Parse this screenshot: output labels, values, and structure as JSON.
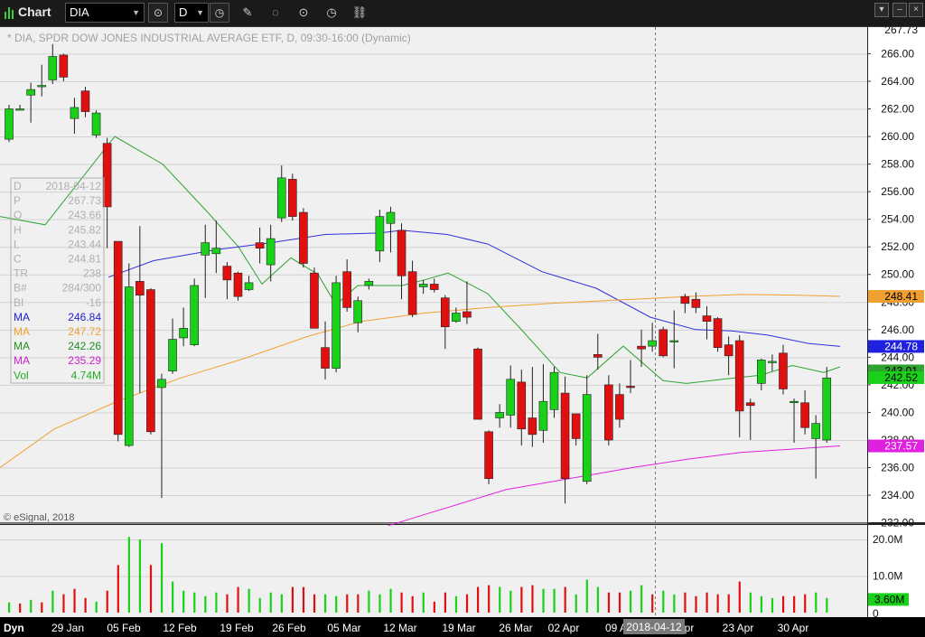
{
  "app": {
    "title": "Chart"
  },
  "toolbar": {
    "symbol": "DIA",
    "interval": "D"
  },
  "chart": {
    "header": "* DIA, SPDR DOW JONES INDUSTRIAL AVERAGE ETF, D, 09:30-16:00 (Dynamic)",
    "copyright": "© eSignal, 2018",
    "price_axis": [
      "266.00",
      "264.00",
      "262.00",
      "260.00",
      "258.00",
      "256.00",
      "254.00",
      "252.00",
      "250.00",
      "248.00",
      "246.00",
      "244.00",
      "242.00",
      "240.00",
      "238.00",
      "236.00",
      "234.00",
      "232.00"
    ],
    "volume_axis": [
      "20.0M",
      "10.0M",
      "0"
    ],
    "date_axis": [
      "29 Jan",
      "05 Feb",
      "12 Feb",
      "19 Feb",
      "26 Feb",
      "05 Mar",
      "12 Mar",
      "19 Mar",
      "26 Mar",
      "02 Apr",
      "09 A",
      "Apr",
      "23 Apr",
      "30 Apr"
    ],
    "date_axis_left": "Dyn",
    "crosshair_date": "2018-04-12",
    "price_tags": {
      "high": "267.73",
      "ma_orange": "248.41",
      "ma_blue": "244.78",
      "ma_green_hidden": "243.01",
      "last": "242.52",
      "ma_magenta": "237.57",
      "volume": "3.60M"
    },
    "colors": {
      "up": "#19d119",
      "down": "#e01010",
      "ma_green": "#2fa32f",
      "ma_blue": "#3030e0",
      "ma_orange": "#f0a030",
      "ma_magenta": "#e020e0",
      "background": "#f0f0f0",
      "grid": "#d2d2d2"
    }
  },
  "data_window": {
    "rows": [
      {
        "label": "D",
        "value": "2018-04-12",
        "color": "#b0b0b0"
      },
      {
        "label": "P",
        "value": "267.73",
        "color": "#b0b0b0"
      },
      {
        "label": "O",
        "value": "243.66",
        "color": "#b0b0b0"
      },
      {
        "label": "H",
        "value": "245.82",
        "color": "#b0b0b0"
      },
      {
        "label": "L",
        "value": "243.44",
        "color": "#b0b0b0"
      },
      {
        "label": "C",
        "value": "244.81",
        "color": "#b0b0b0"
      },
      {
        "label": "TR",
        "value": "238",
        "color": "#b0b0b0"
      },
      {
        "label": "B#",
        "value": "284/300",
        "color": "#b0b0b0"
      },
      {
        "label": "BI",
        "value": "-16",
        "color": "#b0b0b0"
      },
      {
        "label": "MA",
        "value": "246.84",
        "color": "#2020d0"
      },
      {
        "label": "MA",
        "value": "247.72",
        "color": "#f0a030"
      },
      {
        "label": "MA",
        "value": "242.26",
        "color": "#1f8f1f"
      },
      {
        "label": "MA",
        "value": "235.29",
        "color": "#d020d0"
      },
      {
        "label": "Vol",
        "value": "4.74M",
        "color": "#1fae1f"
      }
    ]
  },
  "chart_data": {
    "type": "candlestick",
    "price_range": [
      232,
      267.73
    ],
    "candles": [
      [
        259.8,
        262,
        262.3,
        259.6
      ],
      [
        261.9,
        262,
        262.3,
        261.9
      ],
      [
        263.0,
        263.4,
        263.9,
        261
      ],
      [
        263.7,
        263.7,
        265.2,
        262.9
      ],
      [
        264.1,
        265.8,
        266.7,
        263.8
      ],
      [
        265.9,
        264.3,
        266,
        264
      ],
      [
        261.3,
        262.1,
        262.8,
        260.2
      ],
      [
        263.3,
        261.8,
        263.6,
        261.4
      ],
      [
        260.1,
        261.7,
        261.9,
        259.9
      ],
      [
        259.5,
        254.9,
        259.9,
        251.9
      ],
      [
        252.4,
        238.4,
        252.4,
        237.9
      ],
      [
        237.6,
        249.1,
        250.8,
        237.5
      ],
      [
        249.5,
        248.5,
        253.5,
        241.4
      ],
      [
        248.9,
        238.6,
        249.0,
        238.4
      ],
      [
        241.8,
        242.4,
        242.8,
        233.8
      ],
      [
        243.0,
        245.3,
        246.8,
        242.8
      ],
      [
        245.4,
        246.1,
        247.6,
        244.8
      ],
      [
        244.9,
        249.2,
        249.7,
        244.8
      ],
      [
        251.4,
        252.3,
        253.6,
        248.3
      ],
      [
        251.5,
        251.9,
        253.9,
        250.1
      ],
      [
        250.6,
        249.6,
        250.9,
        248.2
      ],
      [
        250.1,
        248.4,
        250.2,
        248.1
      ],
      [
        248.9,
        249.4,
        249.9,
        248.8
      ],
      [
        252.3,
        251.9,
        253.4,
        250.8
      ],
      [
        250.7,
        252.6,
        253.6,
        249.5
      ],
      [
        254.1,
        257.0,
        257.9,
        253.8
      ],
      [
        256.9,
        254.2,
        257.3,
        253.9
      ],
      [
        254.5,
        250.8,
        254.8,
        250.5
      ],
      [
        250.1,
        246.1,
        250.5,
        246.1
      ],
      [
        244.7,
        243.2,
        246.6,
        242.4
      ],
      [
        243.2,
        249.4,
        249.9,
        242.9
      ],
      [
        250.2,
        247.6,
        251.1,
        247.3
      ],
      [
        246.5,
        248.1,
        248.4,
        245.8
      ],
      [
        249.2,
        249.5,
        249.7,
        248.9
      ],
      [
        251.7,
        254.2,
        254.7,
        250.9
      ],
      [
        253.7,
        254.5,
        254.9,
        251.6
      ],
      [
        253.2,
        249.9,
        253.7,
        248.2
      ],
      [
        250.2,
        247.1,
        251.0,
        246.9
      ],
      [
        249.1,
        249.3,
        249.6,
        248.6
      ],
      [
        249.3,
        248.9,
        249.7,
        248.7
      ],
      [
        248.3,
        246.2,
        248.5,
        244.6
      ],
      [
        246.6,
        247.2,
        247.6,
        246.5
      ],
      [
        247.3,
        246.9,
        249.5,
        246.4
      ],
      [
        244.6,
        239.5,
        244.7,
        239.6
      ],
      [
        238.6,
        235.2,
        238.7,
        234.8
      ],
      [
        239.6,
        240.0,
        240.6,
        238.9
      ],
      [
        239.8,
        242.4,
        243.4,
        238.9
      ],
      [
        242.2,
        238.8,
        243.1,
        237.6
      ],
      [
        239.6,
        238.4,
        243.3,
        237.5
      ],
      [
        238.7,
        240.8,
        243.5,
        237.8
      ],
      [
        240.2,
        242.9,
        243.3,
        239.6
      ],
      [
        241.4,
        235.2,
        242.6,
        233.4
      ],
      [
        239.9,
        238.1,
        239.9,
        237.6
      ],
      [
        235.0,
        241.3,
        242.7,
        234.8
      ],
      [
        244.2,
        244.0,
        245.7,
        243.1
      ],
      [
        242.0,
        238.0,
        242.7,
        237.6
      ],
      [
        241.3,
        239.5,
        242.1,
        238.9
      ],
      [
        241.9,
        241.8,
        243.8,
        241.4
      ],
      [
        244.8,
        244.6,
        246.0,
        243.3
      ],
      [
        244.8,
        245.2,
        246.5,
        244.4
      ],
      [
        246.0,
        244.1,
        246.2,
        244.0
      ],
      [
        245.2,
        245.2,
        247.4,
        243.2
      ],
      [
        248.4,
        247.9,
        248.6,
        247.2
      ],
      [
        248.2,
        247.6,
        248.7,
        247.2
      ],
      [
        247.0,
        246.6,
        247.7,
        245.3
      ],
      [
        246.8,
        244.7,
        246.9,
        244.4
      ],
      [
        244.9,
        244.1,
        245.5,
        242.7
      ],
      [
        245.2,
        240.1,
        245.6,
        238.2
      ],
      [
        240.7,
        240.5,
        241.0,
        238.0
      ],
      [
        242.1,
        243.8,
        243.9,
        241.6
      ],
      [
        243.6,
        243.7,
        244.2,
        243.0
      ],
      [
        244.3,
        241.7,
        244.9,
        241.3
      ],
      [
        240.8,
        240.8,
        241.0,
        237.8
      ],
      [
        240.7,
        238.9,
        241.6,
        238.4
      ],
      [
        238.1,
        239.2,
        239.8,
        235.2
      ],
      [
        238.0,
        242.5,
        243.3,
        237.8
      ]
    ],
    "volume_scale_max": 21,
    "volumes": [
      [
        2.8,
        1
      ],
      [
        2.5,
        0
      ],
      [
        3.5,
        1
      ],
      [
        2.8,
        0
      ],
      [
        6.0,
        1
      ],
      [
        5.0,
        0
      ],
      [
        6.5,
        0
      ],
      [
        4.0,
        0
      ],
      [
        3.0,
        1
      ],
      [
        6.0,
        0
      ],
      [
        13.0,
        0
      ],
      [
        20.7,
        1
      ],
      [
        20.0,
        1
      ],
      [
        13.0,
        0
      ],
      [
        19.0,
        1
      ],
      [
        8.5,
        1
      ],
      [
        6.0,
        1
      ],
      [
        5.5,
        1
      ],
      [
        4.5,
        1
      ],
      [
        5.5,
        1
      ],
      [
        5.0,
        0
      ],
      [
        7.0,
        0
      ],
      [
        6.5,
        1
      ],
      [
        4.0,
        1
      ],
      [
        5.5,
        1
      ],
      [
        5.0,
        1
      ],
      [
        7.0,
        0
      ],
      [
        7.0,
        0
      ],
      [
        5.0,
        0
      ],
      [
        5.0,
        1
      ],
      [
        4.5,
        1
      ],
      [
        5.0,
        0
      ],
      [
        5.0,
        0
      ],
      [
        6.0,
        1
      ],
      [
        5.0,
        1
      ],
      [
        6.5,
        1
      ],
      [
        5.5,
        0
      ],
      [
        4.5,
        0
      ],
      [
        5.5,
        1
      ],
      [
        3.0,
        0
      ],
      [
        5.5,
        0
      ],
      [
        4.5,
        1
      ],
      [
        5.0,
        0
      ],
      [
        7.0,
        0
      ],
      [
        7.5,
        0
      ],
      [
        7.0,
        1
      ],
      [
        6.0,
        1
      ],
      [
        7.0,
        0
      ],
      [
        7.5,
        0
      ],
      [
        6.5,
        1
      ],
      [
        6.5,
        1
      ],
      [
        7.0,
        0
      ],
      [
        5.0,
        1
      ],
      [
        9.0,
        1
      ],
      [
        7.0,
        1
      ],
      [
        5.5,
        0
      ],
      [
        5.5,
        0
      ],
      [
        6.0,
        1
      ],
      [
        7.5,
        1
      ],
      [
        5.0,
        0
      ],
      [
        6.0,
        1
      ],
      [
        5.0,
        1
      ],
      [
        5.5,
        0
      ],
      [
        4.5,
        0
      ],
      [
        5.5,
        0
      ],
      [
        5.0,
        0
      ],
      [
        5.0,
        0
      ],
      [
        8.5,
        0
      ],
      [
        5.5,
        1
      ],
      [
        4.5,
        1
      ],
      [
        4.0,
        1
      ],
      [
        4.5,
        0
      ],
      [
        4.5,
        0
      ],
      [
        5.0,
        0
      ],
      [
        5.5,
        1
      ],
      [
        4.0,
        1
      ]
    ],
    "ma_green": [
      [
        0,
        254.2
      ],
      [
        50,
        253.6
      ],
      [
        127,
        260.0
      ],
      [
        180,
        258.0
      ],
      [
        230,
        254.5
      ],
      [
        264,
        252.0
      ],
      [
        290,
        249.3
      ],
      [
        322,
        251.2
      ],
      [
        352,
        250.0
      ],
      [
        372,
        247.8
      ],
      [
        396,
        249.2
      ],
      [
        445,
        249.2
      ],
      [
        470,
        249.6
      ],
      [
        496,
        250.1
      ],
      [
        540,
        248.6
      ],
      [
        580,
        245.8
      ],
      [
        620,
        242.9
      ],
      [
        650,
        242.5
      ],
      [
        690,
        244.8
      ],
      [
        734,
        242.3
      ],
      [
        760,
        242.1
      ],
      [
        800,
        242.4
      ],
      [
        842,
        242.7
      ],
      [
        877,
        243.4
      ],
      [
        912,
        242.9
      ],
      [
        930,
        243.3
      ]
    ],
    "ma_blue": [
      [
        120,
        249.8
      ],
      [
        170,
        251.0
      ],
      [
        240,
        251.8
      ],
      [
        300,
        252.3
      ],
      [
        360,
        252.9
      ],
      [
        420,
        253.0
      ],
      [
        445,
        253.2
      ],
      [
        495,
        252.9
      ],
      [
        540,
        252.2
      ],
      [
        600,
        250.2
      ],
      [
        660,
        249.0
      ],
      [
        720,
        246.9
      ],
      [
        770,
        246.0
      ],
      [
        810,
        245.9
      ],
      [
        850,
        245.6
      ],
      [
        895,
        245.0
      ],
      [
        930,
        244.78
      ]
    ],
    "ma_orange": [
      [
        0,
        236.0
      ],
      [
        60,
        238.8
      ],
      [
        130,
        240.8
      ],
      [
        200,
        242.5
      ],
      [
        270,
        243.9
      ],
      [
        340,
        245.5
      ],
      [
        400,
        246.6
      ],
      [
        470,
        247.2
      ],
      [
        540,
        247.6
      ],
      [
        610,
        247.9
      ],
      [
        700,
        248.2
      ],
      [
        760,
        248.4
      ],
      [
        820,
        248.55
      ],
      [
        880,
        248.5
      ],
      [
        930,
        248.41
      ]
    ],
    "ma_magenta": [
      [
        430,
        231.8
      ],
      [
        500,
        233.2
      ],
      [
        560,
        234.4
      ],
      [
        630,
        235.2
      ],
      [
        700,
        236.0
      ],
      [
        760,
        236.6
      ],
      [
        820,
        237.1
      ],
      [
        880,
        237.35
      ],
      [
        930,
        237.57
      ]
    ]
  }
}
